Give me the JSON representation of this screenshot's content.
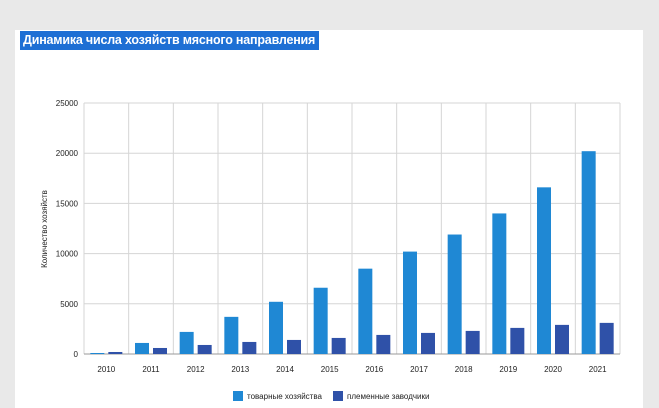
{
  "chart_data": {
    "type": "bar",
    "title": "Динамика числа хозяйств мясного направления",
    "xlabel": "",
    "ylabel": "Количество хозяйств",
    "ylim": [
      0,
      25000
    ],
    "yticks": [
      0,
      5000,
      10000,
      15000,
      20000,
      25000
    ],
    "grid": true,
    "legend": "bottom",
    "categories": [
      "2010",
      "2011",
      "2012",
      "2013",
      "2014",
      "2015",
      "2016",
      "2017",
      "2018",
      "2019",
      "2020",
      "2021"
    ],
    "series": [
      {
        "name": "товарные хозяйства",
        "color": "#1f88d4",
        "values": [
          100,
          1100,
          2200,
          3700,
          5200,
          6600,
          8500,
          10200,
          11900,
          14000,
          16600,
          20200
        ]
      },
      {
        "name": "племенные заводчики",
        "color": "#2f51a8",
        "values": [
          200,
          600,
          900,
          1200,
          1400,
          1600,
          1900,
          2100,
          2300,
          2600,
          2900,
          3100
        ]
      }
    ]
  }
}
